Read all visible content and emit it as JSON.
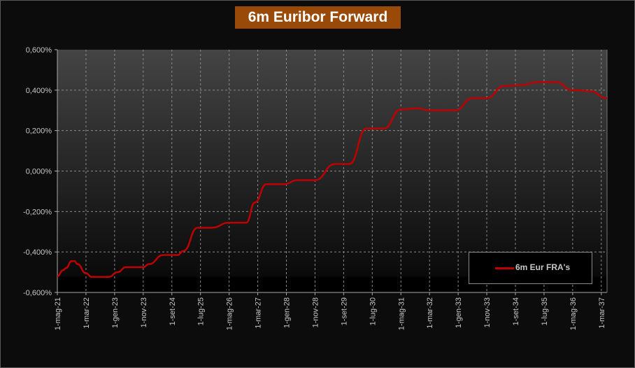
{
  "chart_data": {
    "type": "line",
    "title": "6m Euribor Forward",
    "xlabel": "",
    "ylabel": "",
    "ylim": [
      -0.6,
      0.6
    ],
    "y_unit": "%",
    "yticks": [
      "0,600%",
      "0,400%",
      "0,200%",
      "0,000%",
      "-0,200%",
      "-0,400%",
      "-0,600%"
    ],
    "yticks_values": [
      0.6,
      0.4,
      0.2,
      0.0,
      -0.2,
      -0.4,
      -0.6
    ],
    "xlim": [
      "2021-05",
      "2037-05"
    ],
    "xticks": [
      "1-mag-21",
      "1-mar-22",
      "1-gen-23",
      "1-nov-23",
      "1-set-24",
      "1-lug-25",
      "1-mag-26",
      "1-mar-27",
      "1-gen-28",
      "1-nov-28",
      "1-set-29",
      "1-lug-30",
      "1-mag-31",
      "1-mar-32",
      "1-gen-33",
      "1-nov-33",
      "1-set-34",
      "1-lug-35",
      "1-mag-36",
      "1-mar-37"
    ],
    "xticks_dates": [
      "2021-05",
      "2022-03",
      "2023-01",
      "2023-11",
      "2024-09",
      "2025-07",
      "2026-05",
      "2027-03",
      "2028-01",
      "2028-11",
      "2029-09",
      "2030-07",
      "2031-05",
      "2032-03",
      "2033-01",
      "2033-11",
      "2034-09",
      "2035-07",
      "2036-05",
      "2037-03"
    ],
    "grid": true,
    "legend_position": "bottom-right",
    "colors": {
      "series": "#c00000",
      "title_bg": "#9a4a08"
    },
    "series": [
      {
        "name": "6m Eur FRA's",
        "points": [
          [
            "2021-05",
            -0.52
          ],
          [
            "2021-07",
            -0.49
          ],
          [
            "2021-08",
            -0.48
          ],
          [
            "2021-10",
            -0.445
          ],
          [
            "2021-11",
            -0.445
          ],
          [
            "2021-12",
            -0.46
          ],
          [
            "2022-03",
            -0.505
          ],
          [
            "2022-05",
            -0.523
          ],
          [
            "2022-11",
            -0.523
          ],
          [
            "2023-02",
            -0.5
          ],
          [
            "2023-05",
            -0.475
          ],
          [
            "2023-11",
            -0.475
          ],
          [
            "2024-01",
            -0.46
          ],
          [
            "2024-06",
            -0.415
          ],
          [
            "2024-11",
            -0.415
          ],
          [
            "2025-01",
            -0.395
          ],
          [
            "2025-06",
            -0.28
          ],
          [
            "2025-11",
            -0.28
          ],
          [
            "2026-05",
            -0.255
          ],
          [
            "2026-11",
            -0.255
          ],
          [
            "2027-02",
            -0.155
          ],
          [
            "2027-06",
            -0.065
          ],
          [
            "2027-12",
            -0.065
          ],
          [
            "2028-05",
            -0.045
          ],
          [
            "2028-11",
            -0.045
          ],
          [
            "2029-06",
            0.035
          ],
          [
            "2029-11",
            0.035
          ],
          [
            "2030-05",
            0.21
          ],
          [
            "2030-11",
            0.21
          ],
          [
            "2031-05",
            0.305
          ],
          [
            "2031-11",
            0.31
          ],
          [
            "2032-03",
            0.3
          ],
          [
            "2032-12",
            0.3
          ],
          [
            "2033-06",
            0.36
          ],
          [
            "2033-11",
            0.36
          ],
          [
            "2034-05",
            0.42
          ],
          [
            "2034-11",
            0.425
          ],
          [
            "2035-05",
            0.44
          ],
          [
            "2035-11",
            0.44
          ],
          [
            "2036-05",
            0.4
          ],
          [
            "2036-11",
            0.395
          ],
          [
            "2037-05",
            0.36
          ]
        ]
      }
    ]
  }
}
